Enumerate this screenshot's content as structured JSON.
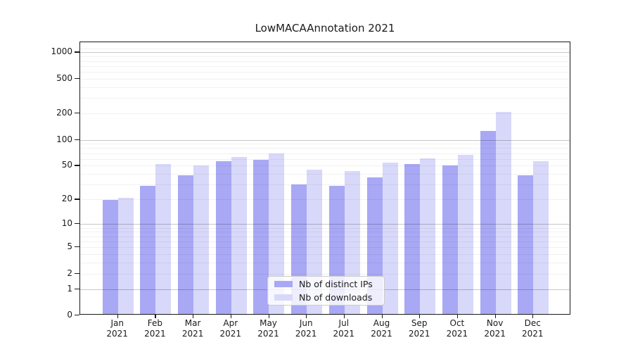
{
  "chart_data": {
    "type": "bar",
    "title": "LowMACAAnnotation 2021",
    "categories": [
      "Jan",
      "Feb",
      "Mar",
      "Apr",
      "May",
      "Jun",
      "Jul",
      "Aug",
      "Sep",
      "Oct",
      "Nov",
      "Dec"
    ],
    "year_label": "2021",
    "series": [
      {
        "name": "Nb of distinct IPs",
        "color": "#a8a8f5",
        "values": [
          19,
          28,
          37,
          54,
          56,
          29,
          28,
          35,
          50,
          49,
          122,
          37
        ]
      },
      {
        "name": "Nb of downloads",
        "color": "#d8d8fa",
        "values": [
          20,
          50,
          49,
          61,
          67,
          43,
          42,
          52,
          59,
          64,
          203,
          54
        ]
      }
    ],
    "y_scale": "log1p",
    "y_ticks": [
      0,
      1,
      2,
      5,
      10,
      20,
      50,
      100,
      200,
      500,
      1000
    ],
    "y_major_gridlines": [
      1,
      10,
      100,
      1000
    ],
    "y_minor_gridlines": [
      2,
      3,
      4,
      5,
      6,
      7,
      8,
      9,
      20,
      30,
      40,
      50,
      60,
      70,
      80,
      90,
      200,
      300,
      400,
      500,
      600,
      700,
      800,
      900,
      1100
    ],
    "ylim": [
      0,
      1300
    ],
    "xlabel": "",
    "ylabel": "",
    "grid": true,
    "legend_position": "lower center",
    "background": "#ffffff"
  }
}
